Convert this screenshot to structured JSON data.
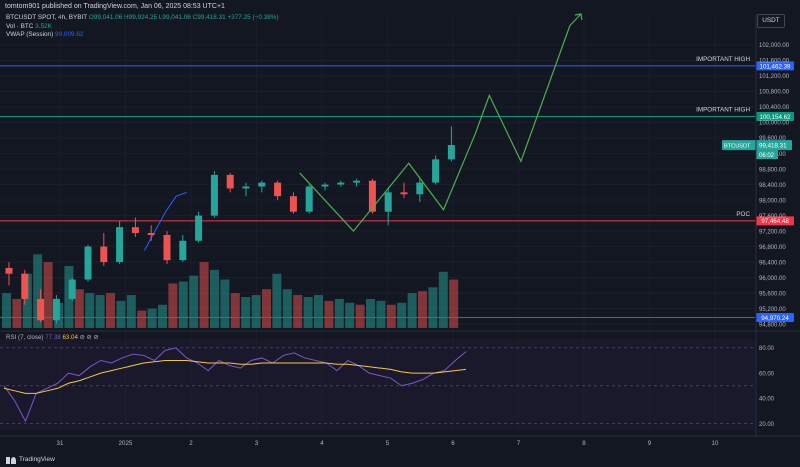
{
  "header": {
    "text": "tomtom901 published on TradingView.com, Jan 06, 2025 08:53 UTC+1"
  },
  "legend": {
    "symbol": "BTCUSDT SPOT, 4h, BYBIT",
    "ohlc": "O99,041.06  H99,924.25  L99,041.06  C99,418.31  +377.25 (+0.38%)",
    "vol_label": "Vol · BTC",
    "vol_value": "3.52K",
    "vwap_label": "VWAP (Session)",
    "vwap_value": "99,009.62"
  },
  "currency": "USDT",
  "rsi_legend": {
    "label": "RSI (7, close)",
    "v1": "77.38",
    "v2": "63.04",
    "icons": "⊘ ⊘ ⊘"
  },
  "footer": {
    "brand": "TradingView"
  },
  "colors": {
    "background": "#131722",
    "up": "#26a69a",
    "down": "#ef5350",
    "level_blue": "#2962ff",
    "level_green": "#089981",
    "poc": "#f23645",
    "projection": "#4caf50",
    "rsi": "#7e57c2",
    "rsi_ma": "#f5c842"
  },
  "chart_data": [
    {
      "type": "candlestick",
      "price_axis": {
        "ticks": [
          "102,000.00",
          "101,600.00",
          "101,200.00",
          "100,800.00",
          "100,400.00",
          "100,000.00",
          "99,600.00",
          "99,200.00",
          "98,800.00",
          "98,400.00",
          "98,000.00",
          "97,600.00",
          "97,200.00",
          "96,800.00",
          "96,400.00",
          "96,000.00",
          "95,600.00",
          "95,200.00",
          "94,800.00"
        ],
        "range": [
          94700,
          102800
        ]
      },
      "time_axis": {
        "labels": [
          "31",
          "2025",
          "2",
          "3",
          "4",
          "5",
          "6",
          "7",
          "8",
          "9",
          "10"
        ]
      },
      "candles": [
        {
          "o": 96250,
          "h": 96400,
          "l": 95800,
          "c": 96100
        },
        {
          "o": 96100,
          "h": 96200,
          "l": 95300,
          "c": 95450
        },
        {
          "o": 95450,
          "h": 95700,
          "l": 94850,
          "c": 94900
        },
        {
          "o": 94900,
          "h": 95550,
          "l": 94800,
          "c": 95450
        },
        {
          "o": 95450,
          "h": 96000,
          "l": 95400,
          "c": 95950
        },
        {
          "o": 95950,
          "h": 96850,
          "l": 95900,
          "c": 96800
        },
        {
          "o": 96800,
          "h": 97150,
          "l": 96300,
          "c": 96400
        },
        {
          "o": 96400,
          "h": 97450,
          "l": 96350,
          "c": 97300
        },
        {
          "o": 97300,
          "h": 97550,
          "l": 97050,
          "c": 97150
        },
        {
          "o": 97150,
          "h": 97350,
          "l": 96950,
          "c": 97100
        },
        {
          "o": 97100,
          "h": 97200,
          "l": 96350,
          "c": 96450
        },
        {
          "o": 96450,
          "h": 97100,
          "l": 96400,
          "c": 96950
        },
        {
          "o": 96950,
          "h": 97700,
          "l": 96900,
          "c": 97600
        },
        {
          "o": 97600,
          "h": 98750,
          "l": 97550,
          "c": 98650
        },
        {
          "o": 98650,
          "h": 98700,
          "l": 98200,
          "c": 98300
        },
        {
          "o": 98300,
          "h": 98450,
          "l": 98100,
          "c": 98350
        },
        {
          "o": 98350,
          "h": 98500,
          "l": 98200,
          "c": 98450
        },
        {
          "o": 98450,
          "h": 98500,
          "l": 98000,
          "c": 98100
        },
        {
          "o": 98100,
          "h": 98200,
          "l": 97650,
          "c": 97700
        },
        {
          "o": 97700,
          "h": 98400,
          "l": 97650,
          "c": 98350
        },
        {
          "o": 98350,
          "h": 98450,
          "l": 98250,
          "c": 98400
        },
        {
          "o": 98400,
          "h": 98500,
          "l": 98350,
          "c": 98450
        },
        {
          "o": 98450,
          "h": 98550,
          "l": 98350,
          "c": 98500
        },
        {
          "o": 98500,
          "h": 98550,
          "l": 97650,
          "c": 97700
        },
        {
          "o": 97700,
          "h": 98300,
          "l": 97350,
          "c": 98200
        },
        {
          "o": 98200,
          "h": 98450,
          "l": 98050,
          "c": 98150
        },
        {
          "o": 98150,
          "h": 98550,
          "l": 97950,
          "c": 98450
        },
        {
          "o": 98450,
          "h": 99150,
          "l": 98400,
          "c": 99050
        },
        {
          "o": 99050,
          "h": 99900,
          "l": 99000,
          "c": 99420
        }
      ],
      "volume": [
        95600,
        95450,
        96100,
        96600,
        96400,
        95350,
        96300,
        95700,
        95600,
        95550,
        95600,
        95400,
        95550,
        95150,
        95200,
        95300,
        95850,
        95900,
        96050,
        96400,
        96200,
        95950,
        95600,
        95500,
        95550,
        95700,
        96100,
        95700,
        95550,
        95500,
        95550,
        95400,
        95450,
        95350,
        95300,
        95450,
        95400,
        95300,
        95350,
        95600,
        95650,
        95750,
        96150,
        95950
      ],
      "levels": [
        {
          "label": "IMPORTANT HIGH",
          "value": "101,462.39",
          "price": 101462.39
        },
        {
          "label": "IMPORTANT HIGH",
          "value": "100,154.62",
          "price": 100154.62
        },
        {
          "label": "POC",
          "value": "97,464.48",
          "price": 97464.48
        },
        {
          "label": "",
          "value": "94,970.24",
          "price": 94970.24
        }
      ],
      "last_price": {
        "symbol": "BTCUSDT",
        "value": "99,418.31",
        "countdown": "06:02"
      },
      "vwap_points": [
        [
          11,
          96700
        ],
        [
          12,
          97200
        ],
        [
          13,
          97700
        ],
        [
          14,
          98100
        ],
        [
          15,
          98200
        ]
      ],
      "projection_path": [
        {
          "t": 18.4,
          "p": 98700
        },
        {
          "t": 21.8,
          "p": 97200
        },
        {
          "t": 25.3,
          "p": 98950
        },
        {
          "t": 27.5,
          "p": 97750
        },
        {
          "t": 29.5,
          "p": 99700
        },
        {
          "t": 30.4,
          "p": 100700
        },
        {
          "t": 32.4,
          "p": 99000
        },
        {
          "t": 35.5,
          "p": 102500
        }
      ],
      "projection_arrow_end": {
        "t": 36.2,
        "p": 102800
      }
    },
    {
      "type": "line",
      "title": "RSI (7, close)",
      "yticks": [
        "80.00",
        "60.00",
        "40.00",
        "20.00"
      ],
      "ylim": [
        15,
        87
      ],
      "series": [
        {
          "name": "RSI",
          "values": [
            50,
            38,
            22,
            44,
            48,
            52,
            60,
            58,
            65,
            70,
            68,
            72,
            75,
            74,
            70,
            78,
            80,
            72,
            68,
            62,
            70,
            66,
            64,
            70,
            72,
            68,
            74,
            76,
            72,
            70,
            68,
            62,
            70,
            66,
            60,
            58,
            56,
            50,
            52,
            55,
            60,
            62,
            70,
            77
          ]
        },
        {
          "name": "MA",
          "values": [
            48,
            46,
            44,
            44,
            46,
            48,
            52,
            54,
            57,
            60,
            62,
            64,
            66,
            68,
            69,
            70,
            70,
            70,
            69,
            68,
            68,
            68,
            67,
            67,
            68,
            68,
            68,
            68,
            68,
            68,
            68,
            67,
            67,
            66,
            65,
            64,
            63,
            61,
            60,
            60,
            60,
            61,
            62,
            63
          ]
        }
      ]
    }
  ]
}
